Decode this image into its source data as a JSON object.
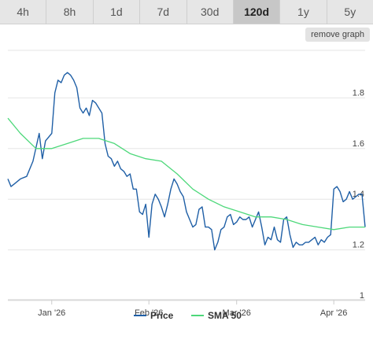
{
  "tabs": [
    {
      "label": "4h",
      "active": false
    },
    {
      "label": "8h",
      "active": false
    },
    {
      "label": "1d",
      "active": false
    },
    {
      "label": "7d",
      "active": false
    },
    {
      "label": "30d",
      "active": false
    },
    {
      "label": "120d",
      "active": true
    },
    {
      "label": "1y",
      "active": false
    },
    {
      "label": "5y",
      "active": false
    }
  ],
  "remove_graph_label": "remove graph",
  "colors": {
    "price": "#1f5fa6",
    "sma": "#4dd87a",
    "grid": "#e6e6e6",
    "axis": "#cccccc"
  },
  "chart_data": {
    "type": "line",
    "ylim": [
      1.0,
      2.0
    ],
    "y_ticks": [
      1,
      1.2,
      1.4,
      1.6,
      1.8
    ],
    "y_tick_labels": [
      "1",
      "1.2",
      "1.4",
      "1.6",
      "1.8"
    ],
    "x_ticks": [
      "2026-01-15",
      "2026-02-15",
      "2026-03-15",
      "2026-04-15"
    ],
    "x_tick_labels": [
      "Jan '26",
      "Feb '26",
      "Mar '26",
      "Apr '26"
    ],
    "x_range": [
      "2026-01-01",
      "2026-04-25"
    ],
    "legend": [
      "Price",
      "SMA 50"
    ],
    "legend_position": "bottom",
    "series": [
      {
        "name": "Price",
        "color": "#1f5fa6",
        "x": [
          "2026-01-01",
          "2026-01-02",
          "2026-01-03",
          "2026-01-05",
          "2026-01-07",
          "2026-01-09",
          "2026-01-11",
          "2026-01-12",
          "2026-01-13",
          "2026-01-15",
          "2026-01-16",
          "2026-01-17",
          "2026-01-18",
          "2026-01-19",
          "2026-01-20",
          "2026-01-21",
          "2026-01-22",
          "2026-01-23",
          "2026-01-24",
          "2026-01-25",
          "2026-01-26",
          "2026-01-27",
          "2026-01-28",
          "2026-01-29",
          "2026-01-30",
          "2026-01-31",
          "2026-02-01",
          "2026-02-02",
          "2026-02-03",
          "2026-02-04",
          "2026-02-05",
          "2026-02-06",
          "2026-02-07",
          "2026-02-08",
          "2026-02-09",
          "2026-02-10",
          "2026-02-11",
          "2026-02-12",
          "2026-02-13",
          "2026-02-14",
          "2026-02-15",
          "2026-02-16",
          "2026-02-17",
          "2026-02-18",
          "2026-02-19",
          "2026-02-20",
          "2026-02-21",
          "2026-02-22",
          "2026-02-23",
          "2026-02-24",
          "2026-02-25",
          "2026-02-26",
          "2026-02-27",
          "2026-02-28",
          "2026-03-01",
          "2026-03-02",
          "2026-03-03",
          "2026-03-04",
          "2026-03-05",
          "2026-03-06",
          "2026-03-07",
          "2026-03-08",
          "2026-03-09",
          "2026-03-10",
          "2026-03-11",
          "2026-03-12",
          "2026-03-13",
          "2026-03-14",
          "2026-03-15",
          "2026-03-16",
          "2026-03-17",
          "2026-03-18",
          "2026-03-19",
          "2026-03-20",
          "2026-03-21",
          "2026-03-22",
          "2026-03-23",
          "2026-03-24",
          "2026-03-25",
          "2026-03-26",
          "2026-03-27",
          "2026-03-28",
          "2026-03-29",
          "2026-03-30",
          "2026-03-31",
          "2026-04-01",
          "2026-04-02",
          "2026-04-03",
          "2026-04-04",
          "2026-04-05",
          "2026-04-06",
          "2026-04-07",
          "2026-04-08",
          "2026-04-09",
          "2026-04-10",
          "2026-04-11",
          "2026-04-12",
          "2026-04-13",
          "2026-04-14",
          "2026-04-15",
          "2026-04-16",
          "2026-04-17",
          "2026-04-18",
          "2026-04-19",
          "2026-04-20",
          "2026-04-21",
          "2026-04-22",
          "2026-04-23",
          "2026-04-24",
          "2026-04-25"
        ],
        "values": [
          1.48,
          1.45,
          1.46,
          1.48,
          1.49,
          1.55,
          1.66,
          1.56,
          1.63,
          1.66,
          1.82,
          1.87,
          1.86,
          1.89,
          1.9,
          1.89,
          1.87,
          1.84,
          1.76,
          1.74,
          1.76,
          1.73,
          1.79,
          1.78,
          1.76,
          1.74,
          1.62,
          1.57,
          1.56,
          1.53,
          1.55,
          1.52,
          1.51,
          1.49,
          1.5,
          1.44,
          1.44,
          1.35,
          1.34,
          1.38,
          1.25,
          1.38,
          1.42,
          1.4,
          1.37,
          1.33,
          1.38,
          1.44,
          1.48,
          1.46,
          1.43,
          1.41,
          1.35,
          1.32,
          1.29,
          1.3,
          1.36,
          1.37,
          1.29,
          1.29,
          1.28,
          1.2,
          1.23,
          1.28,
          1.29,
          1.33,
          1.34,
          1.3,
          1.31,
          1.33,
          1.32,
          1.32,
          1.33,
          1.29,
          1.32,
          1.35,
          1.29,
          1.22,
          1.25,
          1.24,
          1.29,
          1.24,
          1.23,
          1.32,
          1.33,
          1.26,
          1.21,
          1.23,
          1.22,
          1.22,
          1.23,
          1.23,
          1.24,
          1.25,
          1.22,
          1.24,
          1.23,
          1.25,
          1.26,
          1.44,
          1.45,
          1.43,
          1.39,
          1.4,
          1.43,
          1.4,
          1.41,
          1.42,
          1.42,
          1.29
        ],
        "gap_dates": [
          "2026-01-10",
          "2026-01-14"
        ]
      },
      {
        "name": "SMA 50",
        "color": "#4dd87a",
        "x": [
          "2026-01-01",
          "2026-01-05",
          "2026-01-10",
          "2026-01-15",
          "2026-01-20",
          "2026-01-25",
          "2026-01-30",
          "2026-02-04",
          "2026-02-09",
          "2026-02-14",
          "2026-02-19",
          "2026-02-24",
          "2026-03-01",
          "2026-03-06",
          "2026-03-11",
          "2026-03-16",
          "2026-03-21",
          "2026-03-26",
          "2026-03-31",
          "2026-04-05",
          "2026-04-10",
          "2026-04-15",
          "2026-04-20",
          "2026-04-25"
        ],
        "values": [
          1.72,
          1.66,
          1.6,
          1.6,
          1.62,
          1.64,
          1.64,
          1.62,
          1.58,
          1.56,
          1.55,
          1.5,
          1.44,
          1.4,
          1.37,
          1.35,
          1.33,
          1.33,
          1.32,
          1.3,
          1.29,
          1.28,
          1.29,
          1.29
        ]
      }
    ]
  }
}
